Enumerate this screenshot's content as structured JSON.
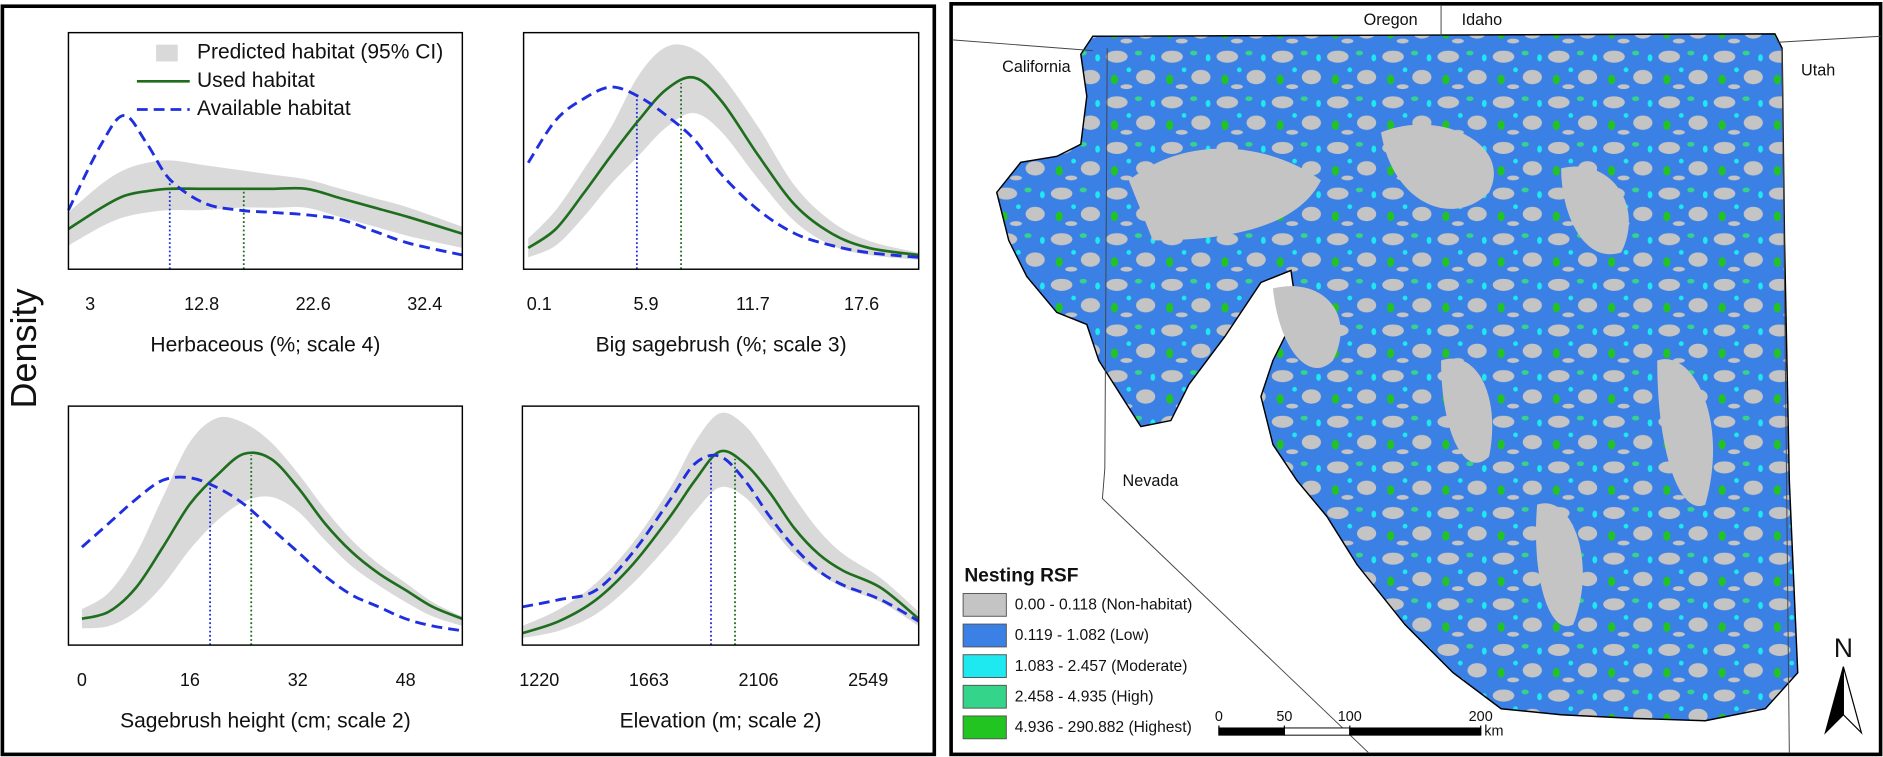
{
  "figure": {
    "ylabel": "Density"
  },
  "chart_data": [
    {
      "type": "line",
      "xlabel": "Herbaceous (%; scale 4)",
      "x": [
        1.1,
        4,
        6,
        8,
        10,
        13,
        16,
        19,
        22,
        25,
        28,
        31,
        35.7
      ],
      "xlim": [
        1.1,
        35.7
      ],
      "xticks": [
        3,
        12.8,
        22.6,
        32.4
      ],
      "ylim": [
        0,
        1
      ],
      "legend": "upper right",
      "band": {
        "name": "Predicted habitat (95% CI)",
        "color": "#d9d9d9",
        "lower": [
          0.1,
          0.18,
          0.22,
          0.24,
          0.25,
          0.25,
          0.26,
          0.26,
          0.26,
          0.22,
          0.18,
          0.14,
          0.09
        ],
        "upper": [
          0.24,
          0.36,
          0.42,
          0.45,
          0.46,
          0.44,
          0.42,
          0.4,
          0.38,
          0.34,
          0.3,
          0.26,
          0.18
        ]
      },
      "series": [
        {
          "name": "Used habitat",
          "color": "#1e6e1e",
          "dashed": false,
          "median": 16.5,
          "values": [
            0.17,
            0.26,
            0.31,
            0.33,
            0.34,
            0.34,
            0.34,
            0.34,
            0.34,
            0.3,
            0.26,
            0.22,
            0.15
          ]
        },
        {
          "name": "Available habitat",
          "color": "#1f2fe0",
          "dashed": true,
          "median": 10.0,
          "values": [
            0.25,
            0.53,
            0.65,
            0.53,
            0.38,
            0.28,
            0.25,
            0.24,
            0.23,
            0.21,
            0.16,
            0.11,
            0.06
          ]
        }
      ]
    },
    {
      "type": "line",
      "xlabel": "Big sagebrush (%; scale 3)",
      "x": [
        -0.5,
        1,
        2.5,
        4,
        5.5,
        7,
        8.5,
        10,
        12,
        14,
        16,
        18,
        20.7
      ],
      "xlim": [
        -0.75,
        20.7
      ],
      "xticks": [
        0.1,
        5.9,
        11.7,
        17.6
      ],
      "ylim": [
        0,
        1
      ],
      "band": {
        "color": "#d9d9d9",
        "lower": [
          0.05,
          0.1,
          0.22,
          0.36,
          0.48,
          0.6,
          0.66,
          0.58,
          0.38,
          0.2,
          0.1,
          0.06,
          0.04
        ],
        "upper": [
          0.13,
          0.25,
          0.42,
          0.6,
          0.82,
          0.94,
          0.93,
          0.82,
          0.6,
          0.35,
          0.2,
          0.12,
          0.07
        ]
      },
      "series": [
        {
          "color": "#1e6e1e",
          "dashed": false,
          "median": 7.8,
          "values": [
            0.09,
            0.17,
            0.32,
            0.48,
            0.63,
            0.76,
            0.81,
            0.71,
            0.48,
            0.27,
            0.15,
            0.09,
            0.06
          ]
        },
        {
          "color": "#1f2fe0",
          "dashed": true,
          "median": 5.4,
          "values": [
            0.45,
            0.63,
            0.72,
            0.77,
            0.73,
            0.65,
            0.55,
            0.4,
            0.25,
            0.15,
            0.1,
            0.07,
            0.05
          ]
        }
      ]
    },
    {
      "type": "line",
      "xlabel": "Sagebrush height (cm; scale 2)",
      "x": [
        0,
        4,
        8,
        12,
        16,
        20,
        24,
        28,
        32,
        36,
        40,
        44,
        48,
        52,
        56.4
      ],
      "xlim": [
        -2,
        56.4
      ],
      "xticks": [
        0,
        16,
        32,
        48
      ],
      "ylim": [
        0,
        1
      ],
      "band": {
        "color": "#d9d9d9",
        "lower": [
          0.07,
          0.08,
          0.14,
          0.25,
          0.4,
          0.52,
          0.6,
          0.62,
          0.56,
          0.44,
          0.33,
          0.25,
          0.18,
          0.12,
          0.08
        ],
        "upper": [
          0.15,
          0.22,
          0.38,
          0.62,
          0.85,
          0.95,
          0.93,
          0.85,
          0.72,
          0.57,
          0.44,
          0.34,
          0.26,
          0.18,
          0.12
        ]
      },
      "series": [
        {
          "color": "#1e6e1e",
          "dashed": false,
          "median": 25.1,
          "values": [
            0.11,
            0.14,
            0.24,
            0.41,
            0.59,
            0.71,
            0.8,
            0.78,
            0.66,
            0.51,
            0.39,
            0.3,
            0.23,
            0.16,
            0.11
          ]
        },
        {
          "color": "#1f2fe0",
          "dashed": true,
          "median": 19.0,
          "values": [
            0.41,
            0.51,
            0.61,
            0.69,
            0.7,
            0.66,
            0.59,
            0.49,
            0.39,
            0.29,
            0.21,
            0.16,
            0.11,
            0.08,
            0.06
          ]
        }
      ]
    },
    {
      "type": "line",
      "xlabel": "Elevation (m; scale 2)",
      "x": [
        1152,
        1300,
        1450,
        1600,
        1750,
        1850,
        1950,
        2050,
        2150,
        2250,
        2350,
        2450,
        2600,
        2753
      ],
      "xlim": [
        1152,
        2753
      ],
      "xticks": [
        1220,
        1663,
        2106,
        2549
      ],
      "ylim": [
        0,
        1
      ],
      "band": {
        "color": "#d9d9d9",
        "lower": [
          0.03,
          0.06,
          0.13,
          0.26,
          0.43,
          0.56,
          0.66,
          0.62,
          0.5,
          0.38,
          0.3,
          0.24,
          0.18,
          0.08
        ],
        "upper": [
          0.08,
          0.15,
          0.26,
          0.43,
          0.66,
          0.85,
          0.97,
          0.92,
          0.78,
          0.62,
          0.48,
          0.38,
          0.28,
          0.14
        ]
      },
      "series": [
        {
          "color": "#1e6e1e",
          "dashed": false,
          "median": 2011,
          "values": [
            0.05,
            0.1,
            0.19,
            0.34,
            0.54,
            0.69,
            0.81,
            0.76,
            0.64,
            0.49,
            0.38,
            0.31,
            0.24,
            0.11
          ]
        },
        {
          "color": "#1f2fe0",
          "dashed": true,
          "median": 1914,
          "values": [
            0.16,
            0.19,
            0.23,
            0.39,
            0.61,
            0.76,
            0.79,
            0.69,
            0.54,
            0.41,
            0.31,
            0.25,
            0.19,
            0.1
          ]
        }
      ]
    }
  ],
  "map": {
    "state_labels": [
      "Oregon",
      "Idaho",
      "California",
      "Utah",
      "Nevada"
    ],
    "legend": {
      "title": "Nesting RSF",
      "items": [
        {
          "label": "0.00 - 0.118 (Non-habitat)",
          "color": "#c4c4c4"
        },
        {
          "label": "0.119 - 1.082 (Low)",
          "color": "#3b80e4"
        },
        {
          "label": "1.083 - 2.457 (Moderate)",
          "color": "#1ee8f0"
        },
        {
          "label": "2.458 - 4.935 (High)",
          "color": "#34d48a"
        },
        {
          "label": "4.936 - 290.882 (Highest)",
          "color": "#22c422"
        }
      ]
    },
    "scale_bar": {
      "ticks": [
        0,
        50,
        100,
        200
      ],
      "unit": "km"
    },
    "north": "N"
  }
}
